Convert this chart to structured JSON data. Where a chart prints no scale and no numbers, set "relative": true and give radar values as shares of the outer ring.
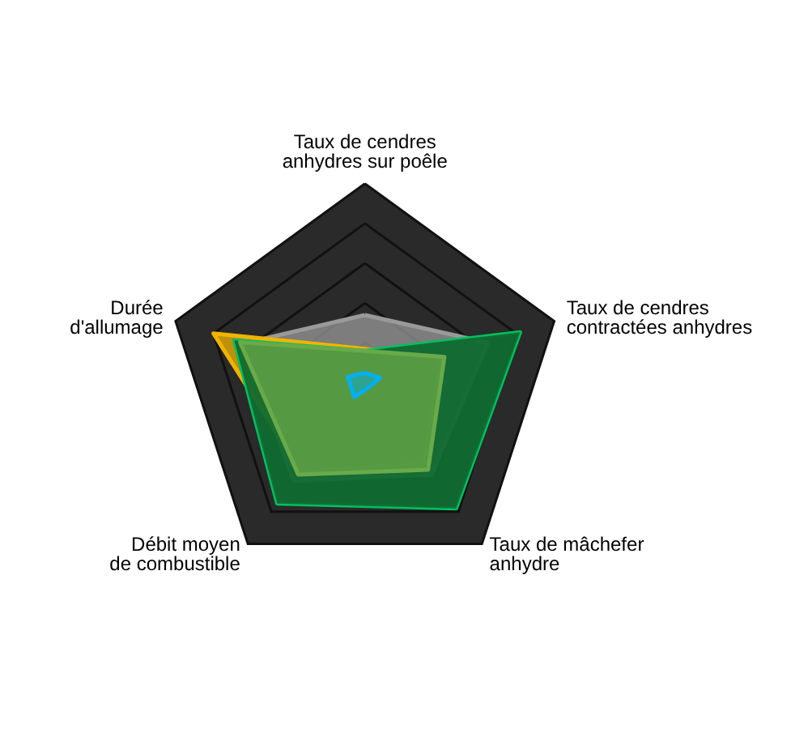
{
  "chart_data": {
    "type": "radar",
    "relative": true,
    "categories": [
      "Taux de cendres\nanhydres sur poêle",
      "Taux de cendres\ncontractées anhydres",
      "Taux de mâchefer\nanhydre",
      "Débit moyen\nde combustible",
      "Durée\nd'allumage"
    ],
    "series": [
      {
        "color": "#9a9a9a",
        "values": [
          0.34,
          0.65,
          0.57,
          0.61,
          0.64
        ]
      },
      {
        "color": "#f0b400",
        "values": [
          0.17,
          0.4,
          0.5,
          0.55,
          0.8
        ]
      },
      {
        "color": "#00c060",
        "values": [
          0.16,
          0.82,
          0.78,
          0.75,
          0.69
        ]
      },
      {
        "color": "#6aaa4a",
        "values": [
          0.16,
          0.42,
          0.54,
          0.57,
          0.66
        ]
      },
      {
        "color": "#00b0f0",
        "values": [
          0.05,
          0.08,
          0.03,
          0.09,
          0.09
        ]
      }
    ]
  }
}
